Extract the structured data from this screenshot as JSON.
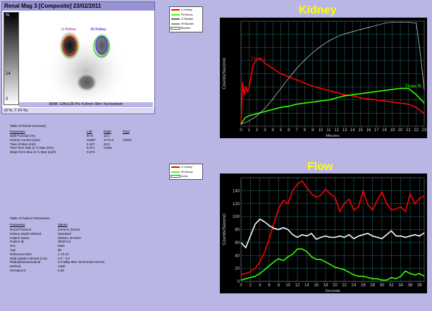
{
  "window": {
    "title": "Renal Mag 3 [Composite] 23/02/2011"
  },
  "scan": {
    "colorbar_top": "%",
    "colorbar_mid": "24",
    "colorbar_bottom": "0",
    "roi_left_label": "Lt Kidney",
    "roi_right_label": "Rt Kidney",
    "info_text": "899K 128x128 Pix 4.8mm 99m Technetium",
    "status_text": "(0 %, T 24 %)"
  },
  "results": {
    "title": "Table of Result Summary",
    "headers": [
      "Parameter",
      "Left",
      "Right",
      "Total"
    ],
    "rows": [
      [
        "Split Function (%)",
        "87.9",
        "12.1",
        ""
      ],
      [
        "Kidney Counts (cpm)",
        "12867",
        "1774.6",
        "14642"
      ],
      [
        "Time of Max (min)",
        "2.167",
        "22.0",
        ""
      ],
      [
        "Time from Max to ½ Max (min)",
        "6.071",
        "0.583",
        ""
      ],
      [
        "Slope from Max to ½ Max (cps²)",
        "0.272",
        "",
        ""
      ]
    ]
  },
  "patient": {
    "title": "Table of Patient Parameters",
    "headers": [
      "Parameter",
      "Values"
    ],
    "rows": [
      [
        "Renal Protocol",
        "Generic (None)"
      ],
      [
        "Kidney Depth Method",
        "Standard"
      ],
      [
        "Patient Name",
        "SINGH, RANJIT"
      ],
      [
        "Patient ID",
        "393071X"
      ],
      [
        "Sex",
        "Male"
      ],
      [
        "Age",
        "60"
      ],
      [
        "Reference BSA",
        "1.73 m²"
      ],
      [
        "Split Uptake Interval (min)",
        "2.0 - 3.0"
      ],
      [
        "Radiopharmaceutical",
        "0.0 MBq 99m Technetium MAG3"
      ],
      [
        "Method",
        "Adult"
      ],
      [
        "Hematocrit",
        "0.00"
      ]
    ]
  },
  "kidney_legend": [
    {
      "label": "Lt Kidney",
      "color": "#ff0000"
    },
    {
      "label": "Rt Kidney",
      "color": "#33ff00"
    },
    {
      "label": "Lt Bladder",
      "color": "#2d8a2d"
    },
    {
      "label": "Rt Bladder",
      "color": "#888888"
    },
    {
      "label": "Bladder",
      "color": "#ffffff"
    }
  ],
  "flow_legend": [
    {
      "label": "Lt Kidney",
      "color": "#ff0000"
    },
    {
      "label": "Rt Kidney",
      "color": "#33ff00"
    },
    {
      "label": "Aorta",
      "color": "#ffffff"
    }
  ],
  "chart_data": [
    {
      "type": "line",
      "title": "Kidney",
      "xlabel": "Minutes",
      "ylabel": "Counts/Second",
      "xlim": [
        0,
        23
      ],
      "ylim": [
        0,
        1
      ],
      "x_ticks": [
        0,
        1,
        2,
        3,
        4,
        5,
        6,
        7,
        8,
        9,
        10,
        11,
        12,
        13,
        14,
        15,
        16,
        17,
        18,
        19,
        20,
        21,
        22,
        23
      ],
      "grid": true,
      "annotations": [
        {
          "text": "Tmax L",
          "x": 2.2,
          "y": 0.63,
          "color": "#ff0000"
        },
        {
          "text": "Tmax R",
          "x": 21.6,
          "y": 0.37,
          "color": "#33ff00"
        }
      ],
      "series": [
        {
          "name": "Lt Kidney",
          "color": "#ff0000",
          "x": [
            0,
            0.2,
            0.4,
            0.6,
            0.8,
            1,
            1.5,
            2,
            2.5,
            3,
            4,
            5,
            6,
            7,
            8,
            9,
            10,
            11,
            12,
            13,
            14,
            15,
            16,
            17,
            18,
            19,
            20,
            21,
            22,
            23
          ],
          "y": [
            0.02,
            0.42,
            0.3,
            0.38,
            0.33,
            0.36,
            0.58,
            0.64,
            0.64,
            0.6,
            0.55,
            0.5,
            0.47,
            0.44,
            0.41,
            0.38,
            0.36,
            0.34,
            0.32,
            0.3,
            0.29,
            0.27,
            0.26,
            0.25,
            0.24,
            0.23,
            0.22,
            0.21,
            0.18,
            0.12
          ]
        },
        {
          "name": "Rt Kidney",
          "color": "#33ff00",
          "x": [
            0,
            0.5,
            1,
            2,
            3,
            4,
            5,
            6,
            7,
            8,
            9,
            10,
            11,
            12,
            13,
            14,
            15,
            16,
            17,
            18,
            19,
            20,
            21,
            22,
            23
          ],
          "y": [
            0.02,
            0.08,
            0.1,
            0.12,
            0.14,
            0.16,
            0.18,
            0.19,
            0.21,
            0.22,
            0.23,
            0.24,
            0.25,
            0.27,
            0.29,
            0.3,
            0.31,
            0.32,
            0.33,
            0.34,
            0.35,
            0.36,
            0.36,
            0.3,
            0.22
          ]
        },
        {
          "name": "Bladder",
          "color": "#ffffff",
          "x": [
            0,
            1,
            2,
            3,
            4,
            5,
            6,
            7,
            8,
            9,
            10,
            11,
            12,
            13,
            14,
            15,
            16,
            17,
            18,
            19,
            20,
            21,
            22,
            22.5,
            23
          ],
          "y": [
            0.02,
            0.05,
            0.1,
            0.17,
            0.26,
            0.36,
            0.46,
            0.55,
            0.63,
            0.7,
            0.76,
            0.81,
            0.85,
            0.88,
            0.9,
            0.92,
            0.94,
            0.96,
            0.98,
            0.99,
            0.99,
            0.99,
            0.98,
            0.7,
            0.35
          ]
        }
      ]
    },
    {
      "type": "line",
      "title": "Flow",
      "xlabel": "Seconds",
      "ylabel": "Counts/Second",
      "xlim": [
        0,
        39
      ],
      "ylim": [
        0,
        160
      ],
      "x_ticks": [
        0,
        2,
        4,
        6,
        8,
        10,
        12,
        14,
        16,
        18,
        20,
        22,
        24,
        26,
        28,
        30,
        32,
        34,
        36,
        38
      ],
      "y_ticks": [
        0,
        20,
        40,
        60,
        80,
        100,
        120,
        140
      ],
      "grid": true,
      "series": [
        {
          "name": "Lt Kidney",
          "color": "#ff0000",
          "x": [
            0,
            1,
            2,
            3,
            4,
            5,
            6,
            7,
            8,
            9,
            10,
            11,
            12,
            13,
            14,
            15,
            16,
            17,
            18,
            19,
            20,
            21,
            22,
            23,
            24,
            25,
            26,
            27,
            28,
            29,
            30,
            31,
            32,
            33,
            34,
            35,
            36,
            37,
            38,
            39
          ],
          "y": [
            10,
            12,
            15,
            20,
            30,
            45,
            65,
            90,
            112,
            125,
            120,
            140,
            150,
            155,
            145,
            135,
            130,
            133,
            142,
            135,
            130,
            108,
            120,
            127,
            110,
            115,
            140,
            118,
            110,
            125,
            138,
            120,
            110,
            112,
            115,
            108,
            135,
            120,
            128,
            132
          ]
        },
        {
          "name": "Rt Kidney",
          "color": "#33ff00",
          "x": [
            0,
            1,
            2,
            3,
            4,
            5,
            6,
            7,
            8,
            9,
            10,
            11,
            12,
            13,
            14,
            15,
            16,
            17,
            18,
            19,
            20,
            21,
            22,
            23,
            24,
            25,
            26,
            27,
            28,
            29,
            30,
            31,
            32,
            33,
            34,
            35,
            36,
            37,
            38,
            39
          ],
          "y": [
            2,
            4,
            6,
            8,
            12,
            18,
            24,
            30,
            35,
            32,
            38,
            42,
            50,
            50,
            46,
            38,
            34,
            34,
            30,
            26,
            22,
            20,
            18,
            14,
            10,
            8,
            8,
            6,
            4,
            4,
            2,
            2,
            6,
            4,
            8,
            16,
            12,
            10,
            12,
            8
          ]
        },
        {
          "name": "Aorta",
          "color": "#ffffff",
          "x": [
            0,
            1,
            2,
            3,
            4,
            5,
            6,
            7,
            8,
            9,
            10,
            11,
            12,
            13,
            14,
            15,
            16,
            17,
            18,
            19,
            20,
            21,
            22,
            23,
            24,
            25,
            26,
            27,
            28,
            29,
            30,
            31,
            32,
            33,
            34,
            35,
            36,
            37,
            38,
            39
          ],
          "y": [
            60,
            52,
            70,
            88,
            96,
            92,
            86,
            82,
            80,
            83,
            80,
            72,
            68,
            72,
            70,
            74,
            65,
            68,
            70,
            68,
            68,
            70,
            68,
            72,
            66,
            70,
            72,
            74,
            70,
            68,
            66,
            72,
            78,
            70,
            70,
            68,
            70,
            72,
            70,
            75
          ]
        }
      ]
    }
  ]
}
